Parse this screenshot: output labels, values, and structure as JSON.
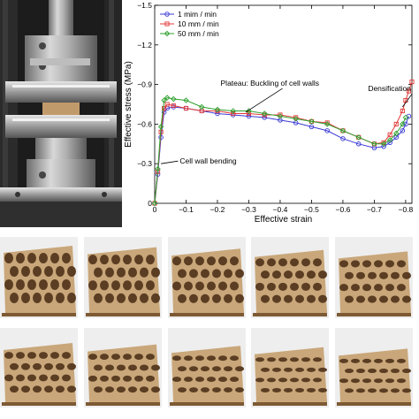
{
  "chart_data": {
    "type": "line",
    "xlabel": "Effective strain",
    "ylabel": "Effective stress (MPa)",
    "xlim": [
      0,
      -0.82
    ],
    "ylim": [
      0,
      -1.5
    ],
    "xticks": [
      "0",
      "−0.1",
      "−0.2",
      "−0.3",
      "−0.4",
      "−0.5",
      "−0.6",
      "−0.7",
      "−0.8"
    ],
    "yticks": [
      "0",
      "−0.3",
      "−0.6",
      "−0.9",
      "−1.2",
      "−1.5"
    ],
    "xtick_values": [
      0,
      -0.1,
      -0.2,
      -0.3,
      -0.4,
      -0.5,
      -0.6,
      -0.7,
      -0.8
    ],
    "ytick_values": [
      0,
      -0.3,
      -0.6,
      -0.9,
      -1.2,
      -1.5
    ],
    "legend_position": "top-left",
    "grid": false,
    "series": [
      {
        "name": "1 mim / min",
        "color": "#3b3bd6",
        "marker": "circle",
        "x": [
          0,
          -0.01,
          -0.02,
          -0.03,
          -0.04,
          -0.06,
          -0.1,
          -0.15,
          -0.2,
          -0.25,
          -0.3,
          -0.35,
          -0.4,
          -0.45,
          -0.5,
          -0.55,
          -0.6,
          -0.65,
          -0.7,
          -0.73,
          -0.75,
          -0.77,
          -0.79,
          -0.8,
          -0.81
        ],
        "y": [
          0,
          -0.22,
          -0.5,
          -0.69,
          -0.72,
          -0.73,
          -0.72,
          -0.7,
          -0.68,
          -0.67,
          -0.66,
          -0.65,
          -0.63,
          -0.61,
          -0.58,
          -0.55,
          -0.49,
          -0.45,
          -0.42,
          -0.43,
          -0.46,
          -0.5,
          -0.55,
          -0.6,
          -0.66
        ]
      },
      {
        "name": "10 mm / min",
        "color": "#e33b3b",
        "marker": "square",
        "x": [
          0,
          -0.01,
          -0.02,
          -0.03,
          -0.04,
          -0.06,
          -0.1,
          -0.15,
          -0.2,
          -0.25,
          -0.3,
          -0.35,
          -0.4,
          -0.45,
          -0.5,
          -0.55,
          -0.6,
          -0.65,
          -0.7,
          -0.73,
          -0.75,
          -0.77,
          -0.79,
          -0.8,
          -0.81,
          -0.82
        ],
        "y": [
          0,
          -0.24,
          -0.54,
          -0.72,
          -0.75,
          -0.74,
          -0.72,
          -0.7,
          -0.7,
          -0.68,
          -0.68,
          -0.67,
          -0.67,
          -0.65,
          -0.62,
          -0.61,
          -0.55,
          -0.5,
          -0.45,
          -0.46,
          -0.52,
          -0.6,
          -0.7,
          -0.78,
          -0.85,
          -0.92
        ]
      },
      {
        "name": "50 mm / min",
        "color": "#2ea02e",
        "marker": "diamond",
        "x": [
          0,
          -0.01,
          -0.02,
          -0.03,
          -0.04,
          -0.06,
          -0.1,
          -0.15,
          -0.2,
          -0.25,
          -0.3,
          -0.35,
          -0.4,
          -0.45,
          -0.5,
          -0.55,
          -0.6,
          -0.65,
          -0.7,
          -0.73,
          -0.75,
          -0.77,
          -0.79,
          -0.8
        ],
        "y": [
          0,
          -0.26,
          -0.58,
          -0.78,
          -0.8,
          -0.79,
          -0.78,
          -0.73,
          -0.71,
          -0.7,
          -0.7,
          -0.68,
          -0.66,
          -0.64,
          -0.62,
          -0.6,
          -0.55,
          -0.5,
          -0.45,
          -0.45,
          -0.48,
          -0.53,
          -0.6,
          -0.65
        ]
      }
    ],
    "annotations": [
      {
        "text": "Plateau: Buckling of cell walls",
        "x": -0.21,
        "y": -0.89,
        "target_x": -0.29,
        "target_y": -0.69
      },
      {
        "text": "Densification",
        "x": -0.68,
        "y": -0.85,
        "target_x": -0.79,
        "target_y": -0.73
      },
      {
        "text": "Cell wall bending",
        "x": -0.08,
        "y": -0.3,
        "target_x": -0.02,
        "target_y": -0.3
      }
    ]
  },
  "sample_grid": {
    "rows": 2,
    "columns": 5
  },
  "colors": {
    "cardboard": "#c9a77a",
    "cardboard_dark": "#7d5a34",
    "cell_interior": "#5a3d22",
    "photo_background": "#202020",
    "steel": "#a8a8a8"
  }
}
